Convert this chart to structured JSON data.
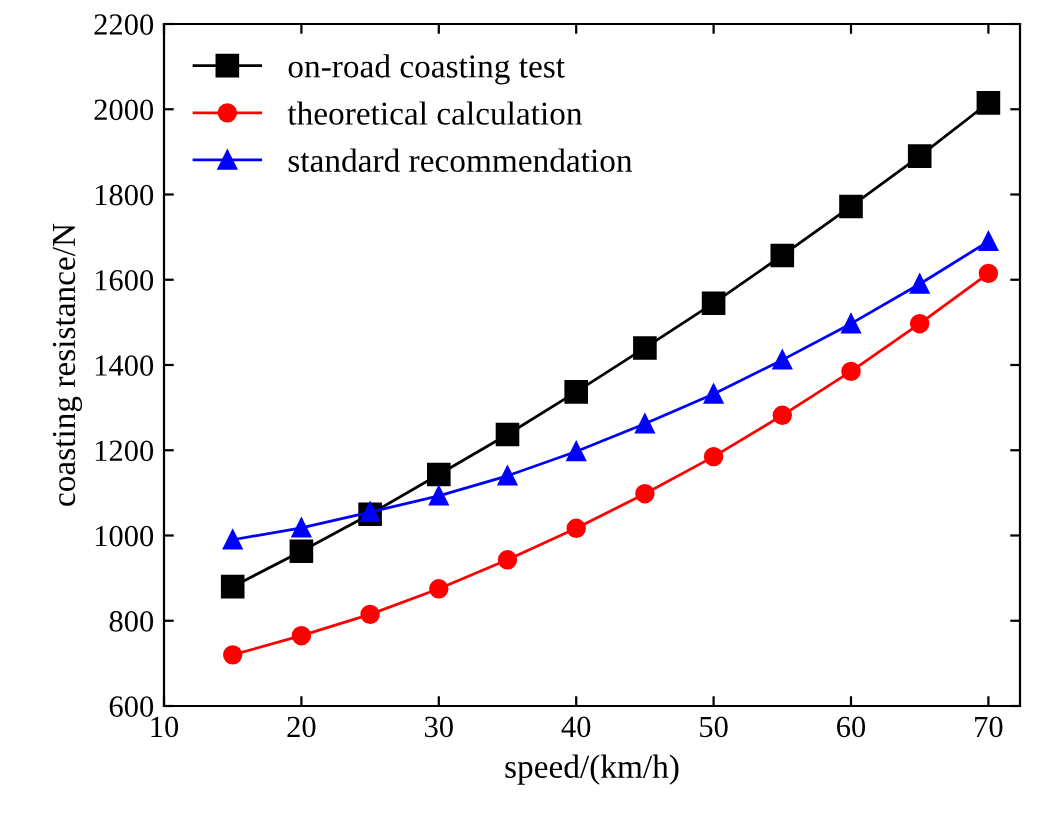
{
  "chart_data": {
    "type": "line",
    "xlabel": "speed/(km/h)",
    "ylabel": "coasting resistance/N",
    "x": [
      15,
      20,
      25,
      30,
      35,
      40,
      45,
      50,
      55,
      60,
      65,
      70
    ],
    "series": [
      {
        "name": "on-road coasting test",
        "color": "#000000",
        "marker": "square",
        "values": [
          880,
          963,
          1050,
          1143,
          1237,
          1337,
          1440,
          1545,
          1657,
          1772,
          1890,
          2015
        ]
      },
      {
        "name": "theoretical calculation",
        "color": "#ff0000",
        "marker": "circle",
        "values": [
          720,
          765,
          815,
          875,
          943,
          1017,
          1098,
          1185,
          1282,
          1385,
          1497,
          1615
        ]
      },
      {
        "name": "standard recommendation",
        "color": "#0000ff",
        "marker": "triangle",
        "values": [
          990,
          1018,
          1055,
          1093,
          1140,
          1197,
          1262,
          1332,
          1412,
          1497,
          1590,
          1690
        ]
      }
    ],
    "xlim": [
      10,
      72.3
    ],
    "xticks": [
      10,
      20,
      30,
      40,
      50,
      60,
      70
    ],
    "ylim": [
      600,
      2200
    ],
    "yticks": [
      600,
      800,
      1000,
      1200,
      1400,
      1600,
      1800,
      2000,
      2200
    ],
    "legend": "top left",
    "grid": false
  }
}
